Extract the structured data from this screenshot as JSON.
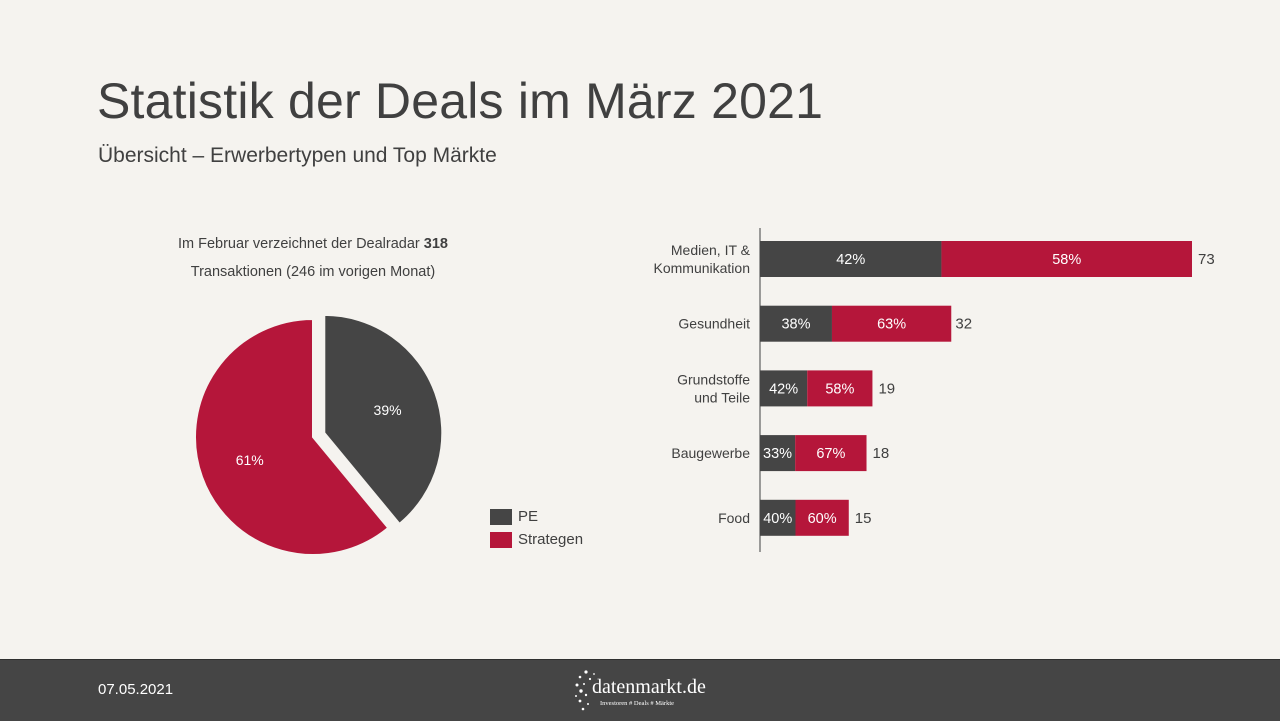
{
  "header": {
    "title": "Statistik der Deals im März 2021",
    "subtitle": "Übersicht – Erwerbertypen und Top Märkte"
  },
  "intro": {
    "text_before": "Im Februar verzeichnet der Dealradar ",
    "highlight": "318",
    "text_after": "Transaktionen (246 im vorigen Monat)"
  },
  "colors": {
    "pe": "#454545",
    "strategen": "#b5163a",
    "background": "#f5f3ef"
  },
  "footer": {
    "date": "07.05.2021",
    "logo_name": "datenmarkt.de",
    "logo_tagline": "Investoren # Deals # Märkte"
  },
  "chart_data": [
    {
      "type": "pie",
      "labels": [
        "PE",
        "Strategen"
      ],
      "values": [
        39,
        61
      ],
      "value_labels": [
        "39%",
        "61%"
      ],
      "exploded": "PE",
      "legend": "right"
    },
    {
      "type": "bar",
      "orientation": "horizontal",
      "stacked": true,
      "categories": [
        [
          "Medien, IT &",
          "Kommunikation"
        ],
        [
          "Gesundheit"
        ],
        [
          "Grundstoffe",
          "und Teile"
        ],
        [
          "Baugewerbe"
        ],
        [
          "Food"
        ]
      ],
      "totals": [
        73,
        32,
        19,
        18,
        15
      ],
      "series": [
        {
          "name": "PE",
          "shares": [
            42,
            38,
            42,
            33,
            40
          ],
          "labels": [
            "42%",
            "38%",
            "42%",
            "33%",
            "40%"
          ]
        },
        {
          "name": "Strategen",
          "shares": [
            58,
            63,
            58,
            67,
            60
          ],
          "labels": [
            "58%",
            "63%",
            "58%",
            "67%",
            "60%"
          ]
        }
      ],
      "xlim": [
        0,
        73
      ]
    }
  ]
}
